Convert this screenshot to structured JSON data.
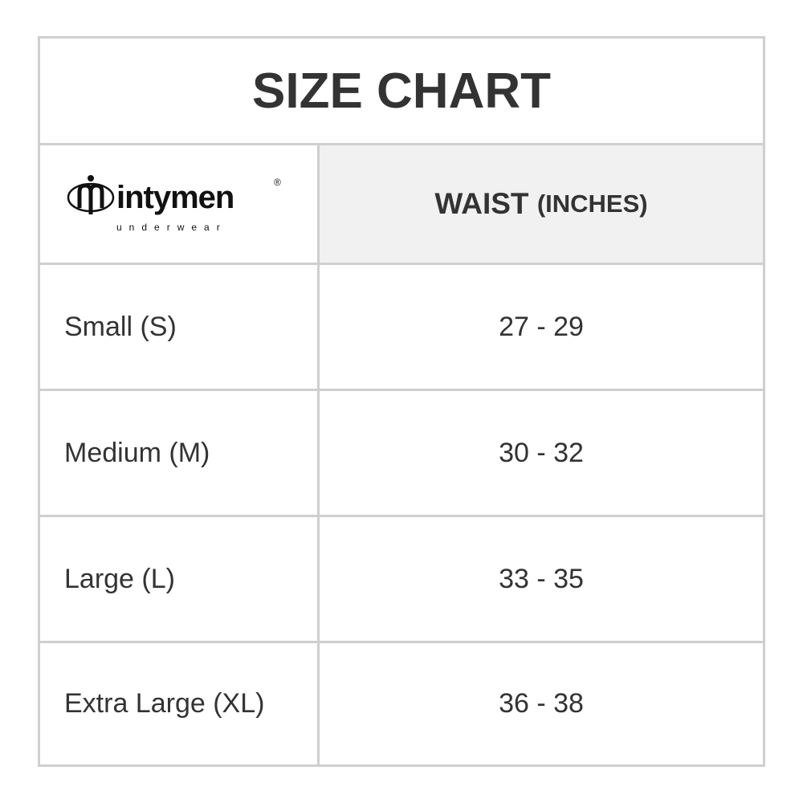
{
  "title": "SIZE CHART",
  "logo": {
    "brand": "intymen",
    "tagline": "underwear",
    "mark": "®"
  },
  "header": {
    "waist": "WAIST",
    "unit": "(INCHES)"
  },
  "rows": [
    {
      "size": "Small (S)",
      "waist": "27 - 29"
    },
    {
      "size": "Medium (M)",
      "waist": "30 - 32"
    },
    {
      "size": "Large (L)",
      "waist": "33 - 35"
    },
    {
      "size": "Extra Large (XL)",
      "waist": "36 - 38"
    }
  ]
}
